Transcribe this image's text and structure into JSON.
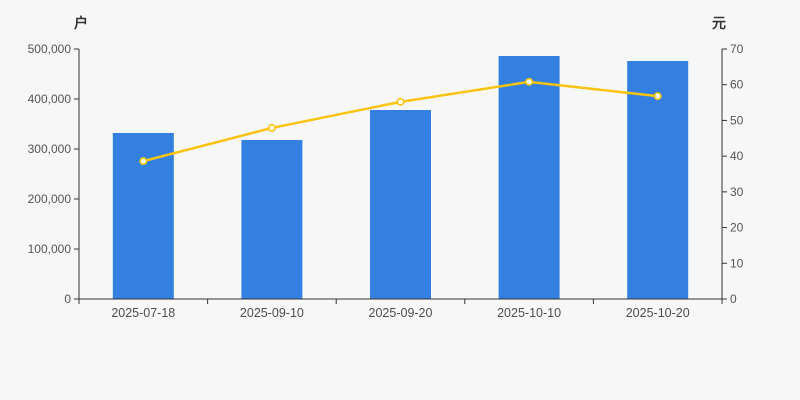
{
  "chart_data": {
    "type": "bar",
    "subtype": "bar-and-line-dual-axis",
    "categories": [
      "2025-07-18",
      "2025-09-10",
      "2025-09-20",
      "2025-10-10",
      "2025-10-20"
    ],
    "series": [
      {
        "kind": "bar",
        "axis": "left",
        "values": [
          332000,
          318000,
          378000,
          486000,
          476000
        ],
        "color": "#3380E0"
      },
      {
        "kind": "line",
        "axis": "right",
        "values": [
          38.6,
          47.9,
          55.2,
          60.8,
          56.8
        ],
        "color": "#FBC312",
        "marker_fill": "#FFFFFF"
      }
    ],
    "left_axis": {
      "unit": "户",
      "min": 0,
      "max": 500000,
      "tick_labels": [
        "0",
        "100,000",
        "200,000",
        "300,000",
        "400,000",
        "500,000"
      ]
    },
    "right_axis": {
      "unit": "元",
      "min": 0,
      "max": 70,
      "tick_labels": [
        "0",
        "10",
        "20",
        "30",
        "40",
        "50",
        "60",
        "70"
      ]
    },
    "title": "",
    "legend": [],
    "grid": false
  },
  "colors": {
    "background": "#F7F7F7",
    "axis_line": "#333333",
    "tick_text": "#555555",
    "bar": "#3380E0",
    "line": "#FBC312"
  }
}
